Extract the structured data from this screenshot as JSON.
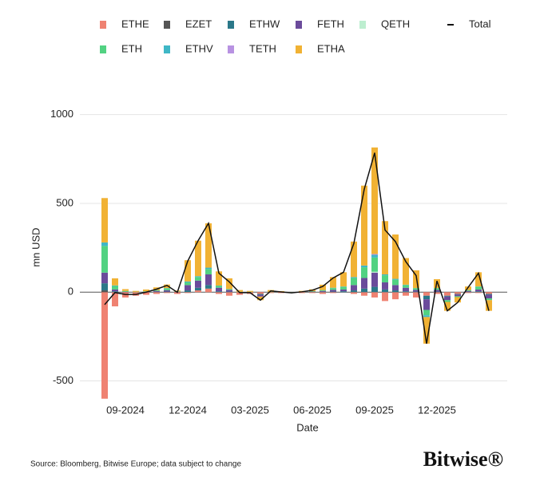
{
  "chart_data": {
    "type": "bar",
    "x_label": "Date",
    "y_label": "mn USD",
    "source": "Source: Bloomberg, Bitwise Europe; data subject to change",
    "logo": "Bitwise®",
    "categories": [
      null,
      null,
      "09-2024",
      null,
      null,
      null,
      null,
      null,
      "12-2024",
      null,
      null,
      null,
      null,
      null,
      "03-2025",
      null,
      null,
      null,
      null,
      null,
      "06-2025",
      null,
      null,
      null,
      null,
      null,
      "09-2025",
      null,
      null,
      null,
      null,
      null,
      "12-2025",
      null,
      null,
      null,
      null,
      null
    ],
    "ylim": [
      -520,
      1030
    ],
    "yticks": [
      -500,
      0,
      500,
      1000
    ],
    "grid": true,
    "series": [
      {
        "name": "ETHE",
        "color": "#ef8272",
        "values": [
          -600,
          -80,
          -30,
          -20,
          -15,
          -10,
          -5,
          -10,
          -5,
          10,
          20,
          -10,
          -20,
          -15,
          -10,
          -10,
          -5,
          -5,
          -5,
          -5,
          -5,
          -10,
          -5,
          0,
          -10,
          -20,
          -30,
          -50,
          -40,
          -20,
          -30,
          -20,
          -10,
          -20,
          -10,
          -5,
          -5,
          -10
        ]
      },
      {
        "name": "EZET",
        "color": "#555555",
        "values": [
          10,
          0,
          0,
          0,
          0,
          0,
          0,
          0,
          0,
          0,
          0,
          0,
          0,
          0,
          0,
          0,
          0,
          0,
          0,
          0,
          0,
          0,
          0,
          0,
          0,
          0,
          0,
          0,
          0,
          0,
          0,
          0,
          0,
          0,
          0,
          0,
          0,
          0
        ]
      },
      {
        "name": "ETHW",
        "color": "#2b7889",
        "values": [
          40,
          5,
          0,
          0,
          0,
          2,
          3,
          0,
          10,
          15,
          20,
          5,
          3,
          0,
          0,
          -5,
          0,
          0,
          0,
          0,
          1,
          2,
          3,
          5,
          10,
          20,
          30,
          15,
          10,
          5,
          3,
          -20,
          3,
          -5,
          -3,
          2,
          5,
          -5
        ]
      },
      {
        "name": "FETH",
        "color": "#6b4b9b",
        "values": [
          60,
          10,
          2,
          0,
          2,
          5,
          8,
          2,
          30,
          40,
          60,
          20,
          10,
          0,
          0,
          -10,
          0,
          0,
          0,
          0,
          2,
          5,
          10,
          10,
          30,
          60,
          80,
          40,
          30,
          20,
          10,
          -60,
          10,
          -20,
          -10,
          5,
          10,
          -20
        ]
      },
      {
        "name": "QETH",
        "color": "#bdeed0",
        "values": [
          0,
          0,
          0,
          0,
          0,
          0,
          0,
          0,
          0,
          0,
          0,
          0,
          0,
          0,
          0,
          0,
          0,
          0,
          0,
          0,
          0,
          0,
          0,
          0,
          0,
          0,
          5,
          0,
          0,
          0,
          0,
          0,
          0,
          0,
          0,
          0,
          0,
          0
        ]
      },
      {
        "name": "ETH",
        "color": "#52d282",
        "values": [
          150,
          20,
          5,
          2,
          3,
          5,
          10,
          2,
          15,
          20,
          30,
          10,
          5,
          2,
          2,
          0,
          2,
          1,
          1,
          2,
          3,
          5,
          10,
          15,
          40,
          60,
          80,
          40,
          30,
          15,
          10,
          -30,
          10,
          -10,
          -5,
          5,
          15,
          -10
        ]
      },
      {
        "name": "ETHV",
        "color": "#3fb7c6",
        "values": [
          20,
          3,
          0,
          0,
          0,
          0,
          2,
          0,
          5,
          5,
          8,
          2,
          0,
          0,
          0,
          0,
          0,
          0,
          0,
          0,
          0,
          0,
          2,
          2,
          5,
          10,
          15,
          5,
          5,
          2,
          0,
          -10,
          0,
          0,
          0,
          0,
          2,
          0
        ]
      },
      {
        "name": "TETH",
        "color": "#b892e2",
        "values": [
          0,
          0,
          0,
          0,
          0,
          0,
          0,
          0,
          0,
          0,
          0,
          0,
          0,
          0,
          0,
          0,
          0,
          0,
          0,
          0,
          0,
          0,
          0,
          0,
          0,
          0,
          5,
          0,
          0,
          0,
          0,
          0,
          0,
          0,
          0,
          0,
          0,
          0
        ]
      },
      {
        "name": "ETHA",
        "color": "#f1b234",
        "values": [
          250,
          40,
          10,
          5,
          10,
          15,
          20,
          5,
          120,
          200,
          250,
          80,
          60,
          10,
          5,
          -20,
          10,
          5,
          0,
          5,
          10,
          30,
          60,
          80,
          200,
          450,
          600,
          300,
          250,
          150,
          100,
          -150,
          50,
          -50,
          -30,
          20,
          80,
          -60
        ]
      },
      {
        "name": "Total",
        "color": "#111111",
        "type": "line",
        "values": [
          -70,
          -2,
          -13,
          -13,
          0,
          17,
          38,
          -1,
          175,
          290,
          388,
          107,
          58,
          -3,
          -3,
          -45,
          7,
          1,
          -4,
          2,
          11,
          32,
          80,
          112,
          275,
          580,
          785,
          350,
          285,
          172,
          93,
          -290,
          63,
          -105,
          -58,
          27,
          107,
          -105
        ]
      }
    ]
  }
}
